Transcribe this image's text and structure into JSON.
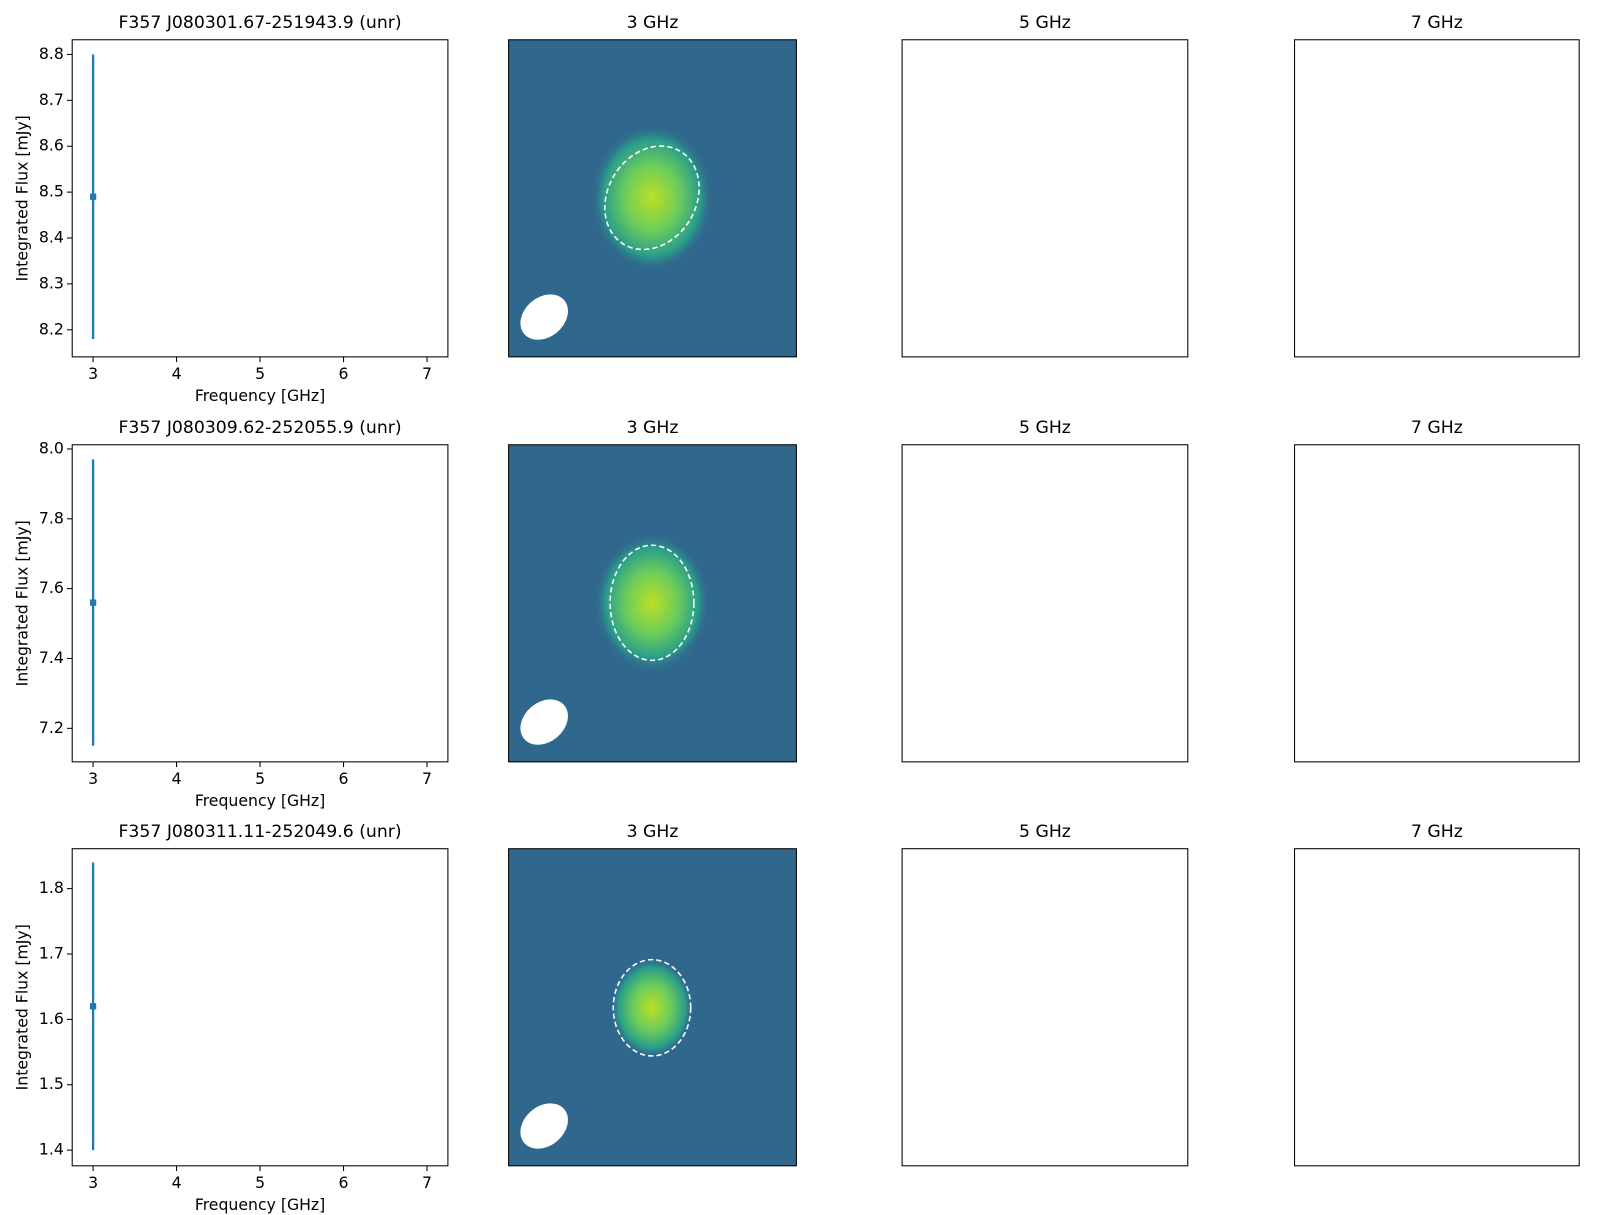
{
  "chart_data": [
    {
      "type": "errorbar",
      "title": "F357 J080301.67-251943.9 (unr)",
      "xlabel": "Frequency [GHz]",
      "ylabel": "Integrated Flux [mJy]",
      "x": [
        3
      ],
      "values": [
        8.49
      ],
      "errors": [
        0.31
      ],
      "color": "#1f77b4",
      "xlim": [
        2.75,
        7.25
      ],
      "xticks": [
        3,
        4,
        5,
        6,
        7
      ],
      "ylim": [
        8.141,
        8.832
      ],
      "yticks": [
        8.2,
        8.3,
        8.4,
        8.5,
        8.6,
        8.7,
        8.8
      ],
      "panel_titles": [
        "3 GHz",
        "5 GHz",
        "7 GHz"
      ]
    },
    {
      "type": "errorbar",
      "title": "F357 J080309.62-252055.9 (unr)",
      "xlabel": "Frequency [GHz]",
      "ylabel": "Integrated Flux [mJy]",
      "x": [
        3
      ],
      "values": [
        7.56
      ],
      "errors": [
        0.41
      ],
      "color": "#1f77b4",
      "xlim": [
        2.75,
        7.25
      ],
      "xticks": [
        3,
        4,
        5,
        6,
        7
      ],
      "ylim": [
        7.104,
        8.012
      ],
      "yticks": [
        7.2,
        7.4,
        7.6,
        7.8,
        {
          "value": 8,
          "label": "8.0"
        }
      ],
      "panel_titles": [
        "3 GHz",
        "5 GHz",
        "7 GHz"
      ]
    },
    {
      "type": "errorbar",
      "title": "F357 J080311.11-252049.6 (unr)",
      "xlabel": "Frequency [GHz]",
      "ylabel": "Integrated Flux [mJy]",
      "x": [
        3
      ],
      "values": [
        1.62
      ],
      "errors": [
        0.22
      ],
      "color": "#1f77b4",
      "xlim": [
        2.75,
        7.25
      ],
      "xticks": [
        3,
        4,
        5,
        6,
        7
      ],
      "ylim": [
        1.376,
        1.861
      ],
      "yticks": [
        1.4,
        1.5,
        1.6,
        1.7,
        1.8
      ],
      "panel_titles": [
        "3 GHz",
        "5 GHz",
        "7 GHz"
      ]
    }
  ]
}
